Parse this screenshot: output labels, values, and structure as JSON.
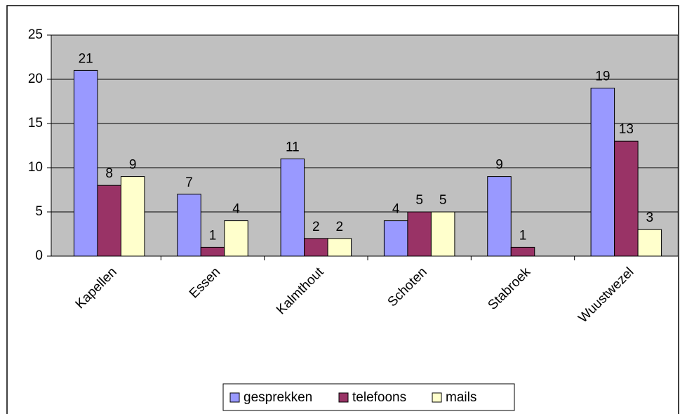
{
  "chart_data": {
    "type": "bar",
    "categories": [
      "Kapellen",
      "Essen",
      "Kalmthout",
      "Schoten",
      "Stabroek",
      "Wuustwezel"
    ],
    "series": [
      {
        "name": "gesprekken",
        "color": "#9999ff",
        "values": [
          21,
          7,
          11,
          4,
          9,
          19
        ]
      },
      {
        "name": "telefoons",
        "color": "#993366",
        "values": [
          8,
          1,
          2,
          5,
          1,
          13
        ]
      },
      {
        "name": "mails",
        "color": "#ffffcc",
        "values": [
          9,
          4,
          2,
          5,
          null,
          3
        ]
      }
    ],
    "ylim": [
      0,
      25
    ],
    "yticks": [
      0,
      5,
      10,
      15,
      20,
      25
    ],
    "grid": true,
    "plot_background": "#c0c0c0",
    "legend": "bottom"
  }
}
